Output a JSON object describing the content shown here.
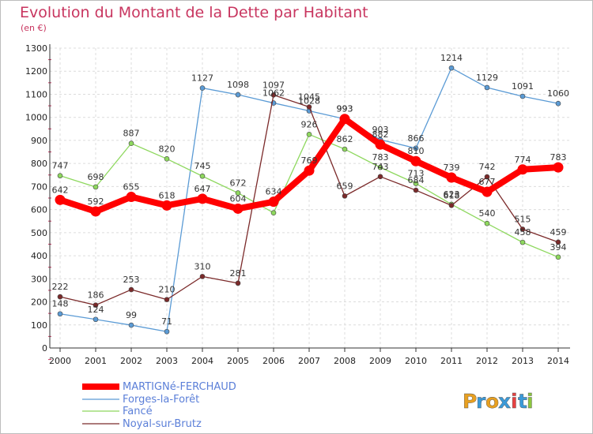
{
  "chart_data": {
    "type": "line",
    "title": "Evolution du Montant de la Dette par Habitant",
    "subtitle": "(en €)",
    "xlabel": "",
    "ylabel": "",
    "ylim": [
      0,
      1300
    ],
    "yticks": [
      0,
      100,
      200,
      300,
      400,
      500,
      600,
      700,
      800,
      900,
      1000,
      1100,
      1200,
      1300
    ],
    "x": [
      "2000",
      "2001",
      "2002",
      "2003",
      "2004",
      "2005",
      "2006",
      "2007",
      "2008",
      "2009",
      "2010",
      "2011",
      "2012",
      "2013",
      "2014"
    ],
    "grid": true,
    "legend_position": "bottom-left",
    "series": [
      {
        "name": "MARTIGNé-FERCHAUD",
        "color": "#ff0000",
        "values": [
          642,
          592,
          655,
          618,
          647,
          604,
          634,
          769,
          993,
          882,
          810,
          739,
          677,
          774,
          783
        ]
      },
      {
        "name": "Forges-la-Forêt",
        "color": "#5b9bd5",
        "values": [
          148,
          124,
          99,
          71,
          1127,
          1098,
          1062,
          1028,
          993,
          903,
          866,
          1214,
          1129,
          1091,
          1060
        ]
      },
      {
        "name": "Fancé",
        "color": "#8ed85e",
        "values": [
          747,
          698,
          887,
          820,
          745,
          672,
          586,
          926,
          862,
          783,
          713,
          623,
          540,
          458,
          394
        ]
      },
      {
        "name": "Noyal-sur-Brutz",
        "color": "#7b2a2a",
        "values": [
          222,
          186,
          253,
          210,
          310,
          281,
          1097,
          1045,
          659,
          743,
          684,
          618,
          742,
          515,
          459
        ]
      }
    ]
  },
  "series_labels": [
    [
      "642",
      "592",
      "655",
      "618",
      "647",
      "604",
      "634",
      "769",
      "993",
      "882",
      "810",
      "739",
      "677",
      "774",
      "783"
    ],
    [
      "148",
      "124",
      "99",
      "71",
      "1127",
      "1098",
      "1062",
      "1028",
      "993",
      "903",
      "866",
      "1214",
      "1129",
      "1091",
      "1060"
    ],
    [
      "747",
      "698",
      "887",
      "820",
      "745",
      "672",
      "",
      "926",
      "862",
      "783",
      "713",
      "623",
      "540",
      "458",
      "394"
    ],
    [
      "222",
      "186",
      "253",
      "210",
      "310",
      "281",
      "1097",
      "1045",
      "659",
      "743",
      "684",
      "618",
      "742",
      "515",
      "459"
    ]
  ],
  "logo": {
    "text": "Proxiti",
    "colors": [
      "#e8a020",
      "#3a9ad9",
      "#e8a020",
      "#3a9ad9",
      "#e84040",
      "#3a9ad9",
      "#8cc63f"
    ]
  }
}
